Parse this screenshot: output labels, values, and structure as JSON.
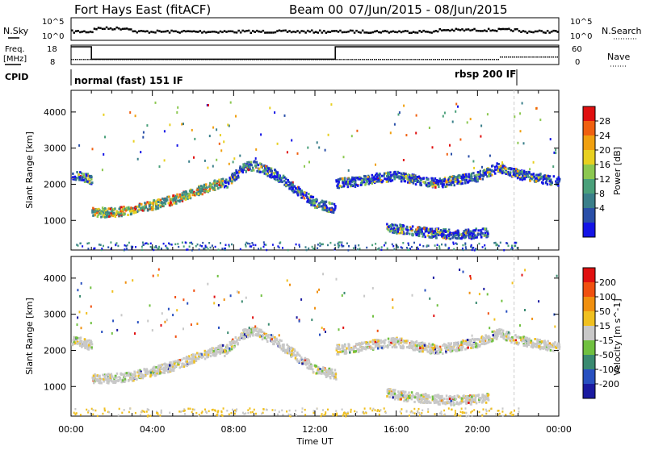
{
  "header": {
    "station": "Fort Hays East (fitACF)",
    "beam": "Beam 00",
    "dates": "07/Jun/2015 - 08/Jun/2015"
  },
  "top_panels": {
    "nsky_label": "N.Sky",
    "nsky_ticks": [
      "10^5",
      "10^0"
    ],
    "nsearch_label": "N.Search",
    "nsearch_ticks": [
      "10^5",
      "10^0"
    ],
    "freq_label": "Freq.",
    "freq_unit": "[MHz]",
    "freq_ticks": [
      "18",
      "8"
    ],
    "nave_label": "Nave",
    "nave_ticks": [
      "60",
      "0"
    ],
    "cpid_label": "CPID",
    "cpid_mode_1": "normal (fast) 151 IF",
    "cpid_mode_2": "rbsp 200 IF"
  },
  "xaxis": {
    "label": "Time UT",
    "ticks": [
      "00:00",
      "04:00",
      "08:00",
      "12:00",
      "16:00",
      "20:00",
      "00:00"
    ]
  },
  "power_panel": {
    "ylabel": "Slant Range [km]",
    "yticks": [
      "4000",
      "3000",
      "2000",
      "1000"
    ],
    "colorbar_label": "Power [dB]",
    "colorbar_ticks": [
      "28",
      "24",
      "20",
      "16",
      "12",
      "8",
      "4"
    ],
    "colors": [
      "#1414e6",
      "#2a4fa8",
      "#3a7f8a",
      "#4aa07a",
      "#8cc850",
      "#e8d020",
      "#f0a010",
      "#f06010",
      "#e01010"
    ]
  },
  "velocity_panel": {
    "ylabel": "Slant Range [km]",
    "yticks": [
      "4000",
      "3000",
      "2000",
      "1000"
    ],
    "colorbar_label": "Velocity [m s^-1]",
    "colorbar_ticks": [
      "200",
      "100",
      "50",
      "15",
      "-15",
      "-50",
      "-100",
      "-200"
    ],
    "colors": [
      "#1a1aa0",
      "#2850c0",
      "#3a8a70",
      "#70c040",
      "#c8c8c8",
      "#f0c020",
      "#f09010",
      "#f05010",
      "#e01010"
    ]
  },
  "chart_data": {
    "type": "heatmap",
    "x_range_hours": [
      0,
      24
    ],
    "y_range_km": [
      180,
      4600
    ],
    "scatter_bands": [
      {
        "name": "band-early",
        "t": [
          0.0,
          0.5,
          1.0
        ],
        "range_km": [
          2300,
          2250,
          2150
        ]
      },
      {
        "name": "band-main",
        "t": [
          1.0,
          2.0,
          3.0,
          4.0,
          5.0,
          6.0,
          7.0,
          7.5
        ],
        "range_km": [
          1250,
          1250,
          1320,
          1450,
          1600,
          1800,
          2000,
          2100
        ]
      },
      {
        "name": "band-arc",
        "t": [
          7.5,
          8.5,
          9.0,
          10.0,
          11.0,
          12.0,
          13.0
        ],
        "range_km": [
          2000,
          2500,
          2550,
          2300,
          1900,
          1500,
          1350
        ]
      },
      {
        "name": "band-late",
        "t": [
          13.0,
          14.0,
          15.0,
          16.0,
          17.0,
          18.0,
          19.0,
          20.0,
          21.0,
          22.0,
          23.0,
          24.0
        ],
        "range_km": [
          2050,
          2100,
          2200,
          2250,
          2150,
          2050,
          2150,
          2250,
          2500,
          2300,
          2200,
          2100
        ]
      },
      {
        "name": "band-low",
        "t": [
          15.5,
          16.5,
          17.5,
          18.5,
          19.5,
          20.5
        ],
        "range_km": [
          850,
          750,
          700,
          650,
          650,
          700
        ]
      }
    ],
    "freq_mhz": {
      "t": [
        0,
        1.0,
        1.0,
        13.0,
        13.0,
        24
      ],
      "values": [
        18,
        18,
        11,
        11,
        18,
        18
      ]
    }
  }
}
